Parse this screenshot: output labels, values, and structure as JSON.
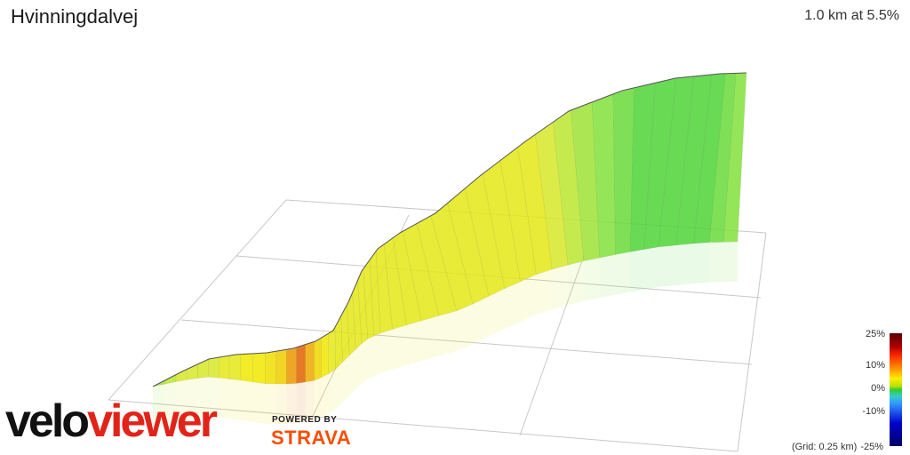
{
  "header": {
    "title": "Hvinningdalvej",
    "stats": "1.0 km at 5.5%"
  },
  "legend": {
    "ticks": [
      "25%",
      "10%",
      "0%",
      "-10%",
      "-25%"
    ],
    "grid_note": "(Grid: 0.25 km)"
  },
  "branding": {
    "logo_part1": "velo",
    "logo_part2": "viewer",
    "powered_by": "POWERED BY",
    "strava": "STRAVA"
  },
  "colors": {
    "logo_red": "#e2231a",
    "strava_orange": "#fc4c02"
  },
  "profile_gradients_pct": [
    4,
    5,
    6,
    6,
    6,
    6,
    7,
    7,
    8,
    8,
    9,
    11,
    14,
    16,
    13,
    10,
    8,
    7,
    7,
    7,
    7,
    7,
    7,
    7,
    7,
    7,
    7,
    7,
    7,
    7,
    7,
    7,
    7,
    7,
    7,
    7,
    6,
    5,
    4,
    3,
    2,
    1,
    1,
    1,
    1,
    1,
    2,
    3
  ]
}
